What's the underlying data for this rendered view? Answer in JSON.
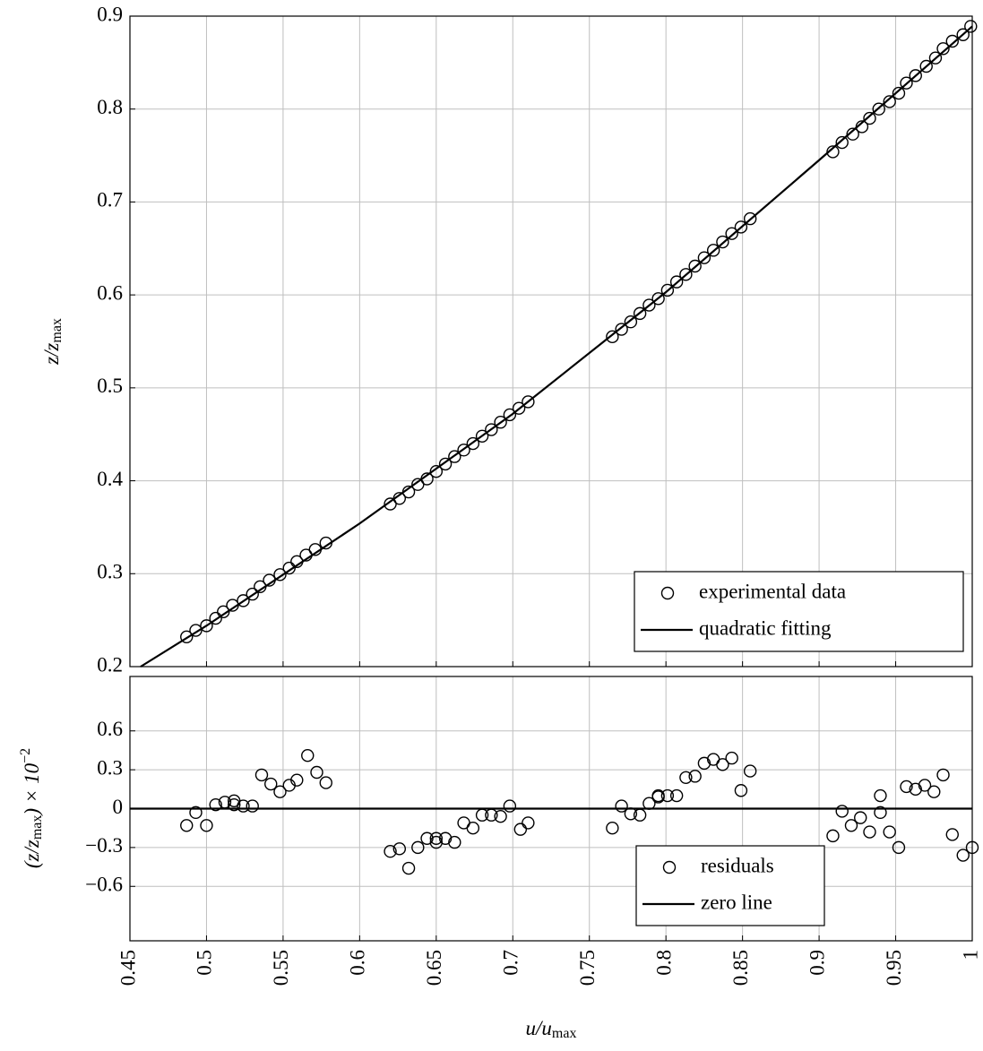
{
  "chart_data": [
    {
      "type": "line",
      "ylabel": [
        "z/z",
        "max"
      ],
      "xlim": [
        0.45,
        1
      ],
      "xticks": [
        0.45,
        0.5,
        0.55,
        0.6,
        0.65,
        0.7,
        0.75,
        0.8,
        0.85,
        0.9,
        0.95,
        1
      ],
      "xtick_labels": false,
      "ylim": [
        0.2,
        0.9
      ],
      "yticks": [
        0.2,
        0.3,
        0.4,
        0.5,
        0.6,
        0.7,
        0.8,
        0.9
      ],
      "grid": true,
      "legend": "lower right",
      "series": [
        {
          "name": "experimental data",
          "type": "scatter",
          "color": "#000000",
          "x": [
            0.487,
            0.493,
            0.5,
            0.506,
            0.511,
            0.517,
            0.524,
            0.53,
            0.535,
            0.541,
            0.548,
            0.554,
            0.559,
            0.565,
            0.571,
            0.578,
            0.62,
            0.626,
            0.632,
            0.638,
            0.644,
            0.65,
            0.656,
            0.662,
            0.668,
            0.674,
            0.68,
            0.686,
            0.692,
            0.698,
            0.704,
            0.71,
            0.765,
            0.771,
            0.777,
            0.783,
            0.789,
            0.795,
            0.801,
            0.807,
            0.813,
            0.819,
            0.825,
            0.831,
            0.837,
            0.843,
            0.849,
            0.855,
            0.909,
            0.915,
            0.922,
            0.928,
            0.933,
            0.939,
            0.946,
            0.952,
            0.957,
            0.963,
            0.97,
            0.976,
            0.981,
            0.987,
            0.994,
            0.999
          ],
          "values": [
            0.232,
            0.239,
            0.244,
            0.252,
            0.259,
            0.266,
            0.271,
            0.278,
            0.286,
            0.293,
            0.299,
            0.306,
            0.313,
            0.32,
            0.326,
            0.333,
            0.375,
            0.381,
            0.388,
            0.396,
            0.402,
            0.41,
            0.418,
            0.426,
            0.433,
            0.44,
            0.448,
            0.455,
            0.463,
            0.471,
            0.478,
            0.485,
            0.555,
            0.563,
            0.571,
            0.58,
            0.589,
            0.596,
            0.605,
            0.614,
            0.622,
            0.631,
            0.64,
            0.648,
            0.657,
            0.666,
            0.673,
            0.682,
            0.754,
            0.764,
            0.773,
            0.781,
            0.79,
            0.8,
            0.808,
            0.817,
            0.828,
            0.836,
            0.846,
            0.855,
            0.865,
            0.873,
            0.88,
            0.889
          ]
        },
        {
          "name": "quadratic fitting",
          "type": "line",
          "color": "#000000",
          "x": [
            0.457,
            0.5,
            0.6,
            0.7,
            0.8,
            0.9,
            1
          ],
          "values": [
            0.2,
            0.244,
            0.354,
            0.472,
            0.603,
            0.745,
            0.889
          ]
        }
      ]
    },
    {
      "type": "line",
      "xlabel": [
        "u/u",
        "max"
      ],
      "ylabel": [
        "(z/z",
        "max",
        ") × 10",
        "−2"
      ],
      "xlim": [
        0.45,
        1
      ],
      "xticks": [
        0.45,
        0.5,
        0.55,
        0.6,
        0.65,
        0.7,
        0.75,
        0.8,
        0.85,
        0.9,
        0.95,
        1
      ],
      "xtick_labels": true,
      "ylim": [
        -1.02,
        1.02
      ],
      "yticks": [
        {
          "value": -0.6,
          "label": "−0.6"
        },
        {
          "value": -0.3,
          "label": "−0.3"
        },
        0,
        0.3,
        0.6
      ],
      "grid": true,
      "legend": "lower center",
      "series": [
        {
          "name": "residuals",
          "type": "scatter",
          "color": "#000000",
          "x": [
            0.487,
            0.493,
            0.5,
            0.506,
            0.512,
            0.518,
            0.518,
            0.524,
            0.53,
            0.536,
            0.542,
            0.548,
            0.554,
            0.559,
            0.566,
            0.572,
            0.578,
            0.62,
            0.626,
            0.632,
            0.638,
            0.644,
            0.65,
            0.65,
            0.656,
            0.662,
            0.668,
            0.674,
            0.68,
            0.686,
            0.692,
            0.698,
            0.705,
            0.71,
            0.765,
            0.771,
            0.777,
            0.783,
            0.789,
            0.795,
            0.795,
            0.801,
            0.807,
            0.813,
            0.819,
            0.825,
            0.831,
            0.837,
            0.843,
            0.849,
            0.855,
            0.909,
            0.915,
            0.921,
            0.927,
            0.933,
            0.94,
            0.94,
            0.946,
            0.952,
            0.957,
            0.963,
            0.969,
            0.975,
            0.981,
            0.987,
            0.994,
            1
          ],
          "values": [
            -0.13,
            -0.03,
            -0.13,
            0.03,
            0.05,
            0.06,
            0.03,
            0.02,
            0.02,
            0.26,
            0.19,
            0.13,
            0.18,
            0.22,
            0.41,
            0.28,
            0.2,
            -0.33,
            -0.31,
            -0.46,
            -0.3,
            -0.23,
            -0.26,
            -0.23,
            -0.23,
            -0.26,
            -0.11,
            -0.15,
            -0.05,
            -0.05,
            -0.06,
            0.02,
            -0.16,
            -0.11,
            -0.15,
            0.02,
            -0.04,
            -0.05,
            0.04,
            0.1,
            0.09,
            0.1,
            0.1,
            0.24,
            0.25,
            0.35,
            0.38,
            0.34,
            0.39,
            0.14,
            0.29,
            -0.21,
            -0.02,
            -0.13,
            -0.07,
            -0.18,
            0.1,
            -0.03,
            -0.18,
            -0.3,
            0.17,
            0.15,
            0.18,
            0.13,
            0.26,
            -0.2,
            -0.36,
            -0.3
          ]
        },
        {
          "name": "zero line",
          "type": "line",
          "color": "#000000",
          "x": [
            0.45,
            1
          ],
          "values": [
            0,
            0
          ]
        }
      ]
    }
  ]
}
